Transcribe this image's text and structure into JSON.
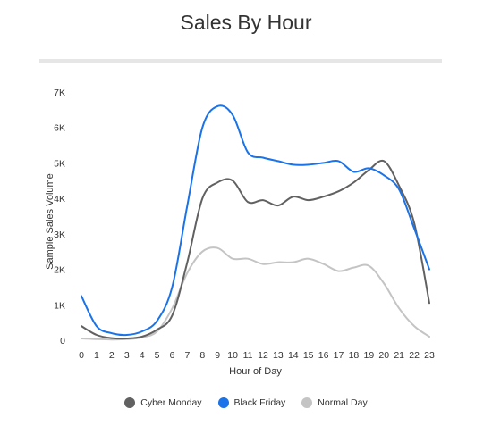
{
  "chart_data": {
    "type": "line",
    "title": "Sales By Hour",
    "xlabel": "Hour of Day",
    "ylabel": "Sample Sales Volume",
    "x": [
      0,
      1,
      2,
      3,
      4,
      5,
      6,
      7,
      8,
      9,
      10,
      11,
      12,
      13,
      14,
      15,
      16,
      17,
      18,
      19,
      20,
      21,
      22,
      23
    ],
    "x_tick_labels": [
      "0",
      "1",
      "2",
      "3",
      "4",
      "5",
      "6",
      "7",
      "8",
      "9",
      "10",
      "11",
      "12",
      "13",
      "14",
      "15",
      "16",
      "17",
      "18",
      "19",
      "20",
      "21",
      "22",
      "23"
    ],
    "ylim": [
      0,
      7000
    ],
    "y_ticks": [
      0,
      1000,
      2000,
      3000,
      4000,
      5000,
      6000,
      7000
    ],
    "y_tick_labels": [
      "0",
      "1K",
      "2K",
      "3K",
      "4K",
      "5K",
      "6K",
      "7K"
    ],
    "grid": false,
    "legend_position": "bottom",
    "series": [
      {
        "name": "Cyber Monday",
        "color": "#616161",
        "values": [
          400,
          150,
          60,
          50,
          100,
          300,
          700,
          2200,
          4000,
          4450,
          4500,
          3900,
          3950,
          3800,
          4050,
          3950,
          4050,
          4200,
          4450,
          4800,
          5050,
          4350,
          3300,
          1050
        ]
      },
      {
        "name": "Black Friday",
        "color": "#1a73e8",
        "values": [
          1250,
          400,
          200,
          150,
          250,
          550,
          1500,
          3800,
          6000,
          6600,
          6350,
          5300,
          5150,
          5050,
          4950,
          4950,
          5000,
          5050,
          4750,
          4850,
          4650,
          4250,
          3150,
          2000
        ]
      },
      {
        "name": "Normal Day",
        "color": "#c4c4c4",
        "values": [
          50,
          30,
          20,
          30,
          80,
          250,
          900,
          1900,
          2500,
          2600,
          2300,
          2300,
          2150,
          2200,
          2200,
          2300,
          2150,
          1950,
          2050,
          2100,
          1600,
          900,
          400,
          100
        ]
      }
    ]
  }
}
